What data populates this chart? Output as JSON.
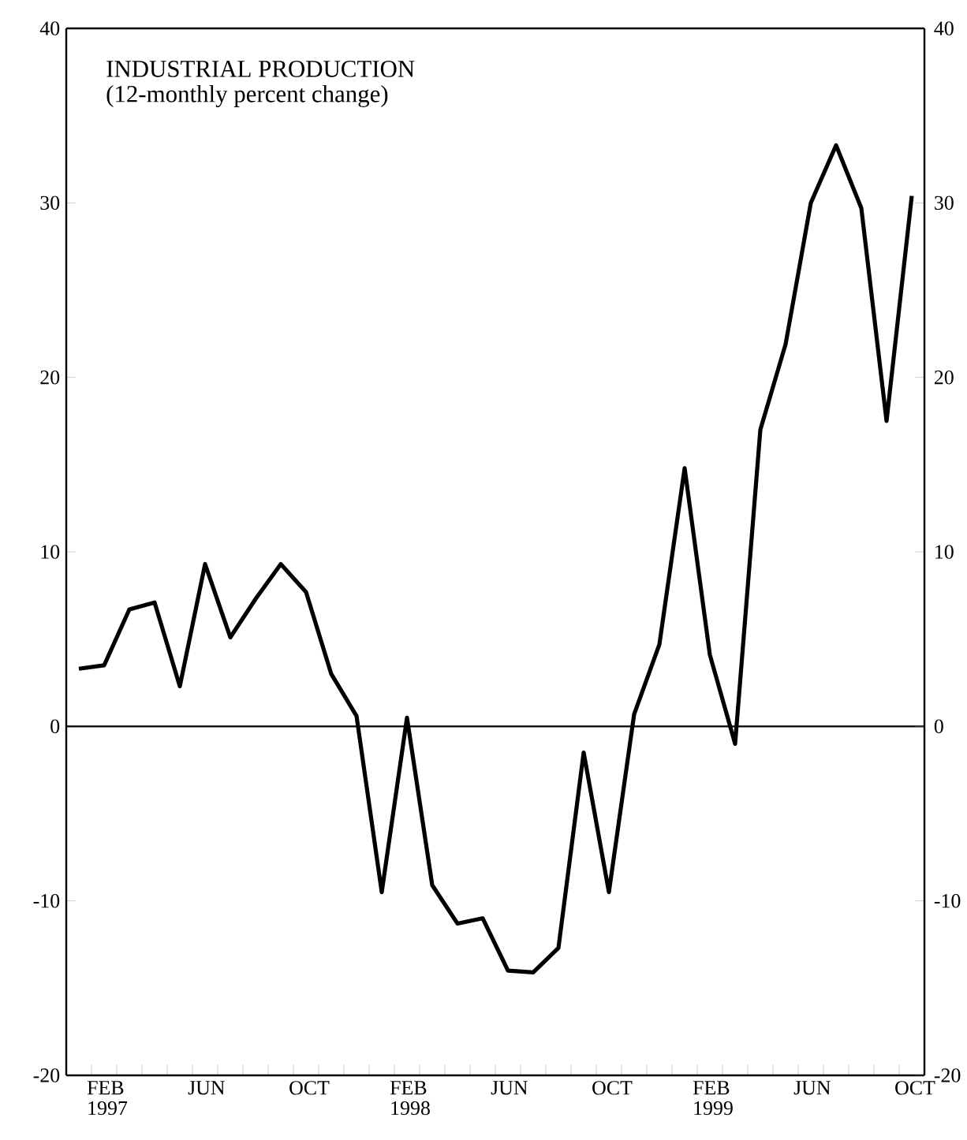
{
  "chart_data": {
    "type": "line",
    "title": "INDUSTRIAL PRODUCTION",
    "subtitle": "(12-monthly percent change)",
    "categories": [
      null,
      "FEB 1997",
      null,
      null,
      null,
      "JUN",
      null,
      null,
      null,
      "OCT",
      null,
      null,
      null,
      "FEB 1998",
      null,
      null,
      null,
      "JUN",
      null,
      null,
      null,
      "OCT",
      null,
      null,
      null,
      "FEB 1999",
      null,
      null,
      null,
      "JUN",
      null,
      null,
      null,
      "OCT"
    ],
    "series": [
      {
        "color": "#000000",
        "values": [
          3.3,
          3.5,
          6.7,
          7.1,
          2.3,
          9.3,
          5.1,
          7.3,
          9.3,
          7.7,
          3.0,
          0.6,
          -9.5,
          0.5,
          -9.1,
          -11.3,
          -11.0,
          -14.0,
          -14.1,
          -12.7,
          -1.5,
          -9.5,
          0.7,
          4.7,
          14.8,
          4.1,
          -1.0,
          17.0,
          21.9,
          30.0,
          33.3,
          29.7,
          17.5,
          30.4
        ]
      }
    ],
    "ylim": [
      -20,
      40
    ],
    "yticks": [
      -20,
      -10,
      0,
      10,
      20,
      30,
      40
    ],
    "y2lim": [
      -20,
      40
    ],
    "y2ticks": [
      -20,
      -10,
      0,
      10,
      20,
      30,
      40
    ],
    "ref_lines": [
      {
        "axis": "y",
        "value": 0,
        "color": "#000000"
      }
    ],
    "grid": false,
    "marker": "none",
    "line_style": "solid"
  }
}
